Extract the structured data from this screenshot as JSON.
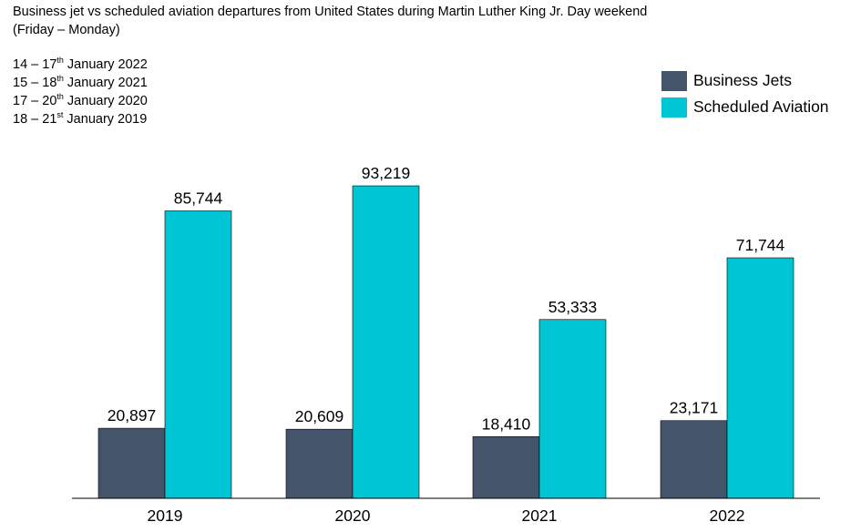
{
  "header": {
    "title_line1": "Business jet vs scheduled aviation departures from United States during Martin Luther King Jr. Day weekend",
    "title_line2": "(Friday – Monday)"
  },
  "notes": [
    {
      "pre": "14 – 17",
      "sup": "th",
      "post": " January 2022"
    },
    {
      "pre": "15 – 18",
      "sup": "th",
      "post": " January 2021"
    },
    {
      "pre": "17 – 20",
      "sup": "th",
      "post": " January 2020"
    },
    {
      "pre": "18 – 21",
      "sup": "st",
      "post": " January 2019"
    }
  ],
  "chart_data": {
    "type": "bar",
    "title": "Business jet vs scheduled aviation departures from United States during Martin Luther King Jr. Day weekend",
    "xlabel": "",
    "ylabel": "",
    "categories": [
      "2019",
      "2020",
      "2021",
      "2022"
    ],
    "series": [
      {
        "name": "Business Jets",
        "color": "#44546a",
        "values": [
          20897,
          20609,
          18410,
          23171
        ],
        "labels": [
          "20,897",
          "20,609",
          "18,410",
          "23,171"
        ]
      },
      {
        "name": "Scheduled Aviation",
        "color": "#00c5d4",
        "values": [
          85744,
          93219,
          53333,
          71744
        ],
        "labels": [
          "85,744",
          "93,219",
          "53,333",
          "71,744"
        ]
      }
    ],
    "ylim": [
      0,
      100000
    ],
    "grid": false,
    "legend": "top-right"
  }
}
